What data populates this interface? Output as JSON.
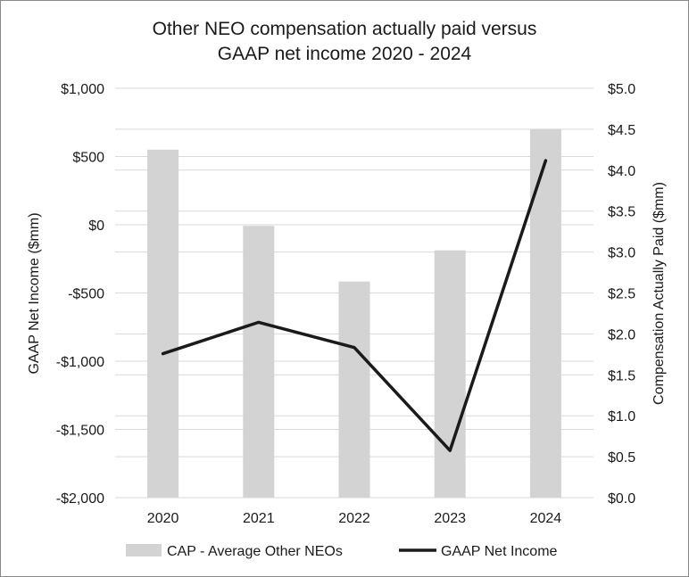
{
  "chart_data": {
    "type": "bar+line",
    "title_lines": [
      "Other NEO compensation actually paid versus",
      "GAAP net income 2020 - 2024"
    ],
    "categories": [
      "2020",
      "2021",
      "2022",
      "2023",
      "2024"
    ],
    "left_axis": {
      "label": "GAAP Net Income ($mm)",
      "ylim": [
        -2000,
        1000
      ],
      "ticks": [
        1000,
        500,
        0,
        -500,
        -1000,
        -1500,
        -2000
      ],
      "tick_labels": [
        "$1,000",
        "$500",
        "$0",
        "-$500",
        "-$1,000",
        "-$1,500",
        "-$2,000"
      ]
    },
    "right_axis": {
      "label": "Compensation Actually Paid ($mm)",
      "ylim": [
        0,
        5
      ],
      "ticks": [
        5.0,
        4.5,
        4.0,
        3.5,
        3.0,
        2.5,
        2.0,
        1.5,
        1.0,
        0.5,
        0.0
      ],
      "tick_labels": [
        "$5.0",
        "$4.5",
        "$4.0",
        "$3.5",
        "$3.0",
        "$2.5",
        "$2.0",
        "$1.5",
        "$1.0",
        "$0.5",
        "$0.0"
      ]
    },
    "series": [
      {
        "name": "CAP - Average Other NEOs",
        "type": "bar",
        "axis": "right",
        "color": "#d3d3d3",
        "values": [
          4.25,
          3.32,
          2.64,
          3.02,
          4.5
        ]
      },
      {
        "name": "GAAP Net Income",
        "type": "line",
        "axis": "left",
        "color": "#1a1a1a",
        "values": [
          -945,
          -715,
          -900,
          -1655,
          470
        ]
      }
    ],
    "grid": true,
    "legend_position": "bottom"
  }
}
